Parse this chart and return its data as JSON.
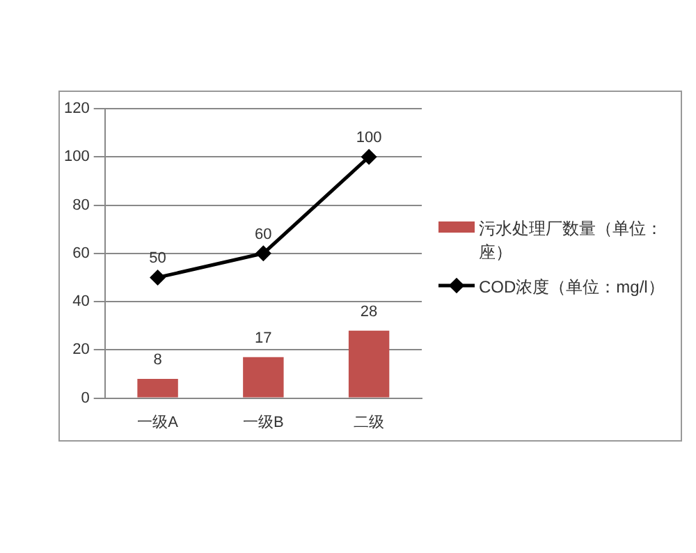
{
  "chart_data": {
    "type": "bar",
    "categories": [
      "一级A",
      "一级B",
      "二级"
    ],
    "series": [
      {
        "name": "污水处理厂数量（单位：座）",
        "color": "#c0504d",
        "values": [
          8,
          17,
          28
        ]
      },
      {
        "name": "COD浓度（单位：mg/l）",
        "type": "line",
        "color": "#000000",
        "values": [
          50,
          60,
          100
        ]
      }
    ],
    "ylim": [
      0,
      120
    ],
    "yticks": [
      0,
      20,
      40,
      60,
      80,
      100,
      120
    ],
    "grid": "y",
    "legend": "right",
    "marker": "diamond",
    "line_style": "solid",
    "data_labels": true
  }
}
